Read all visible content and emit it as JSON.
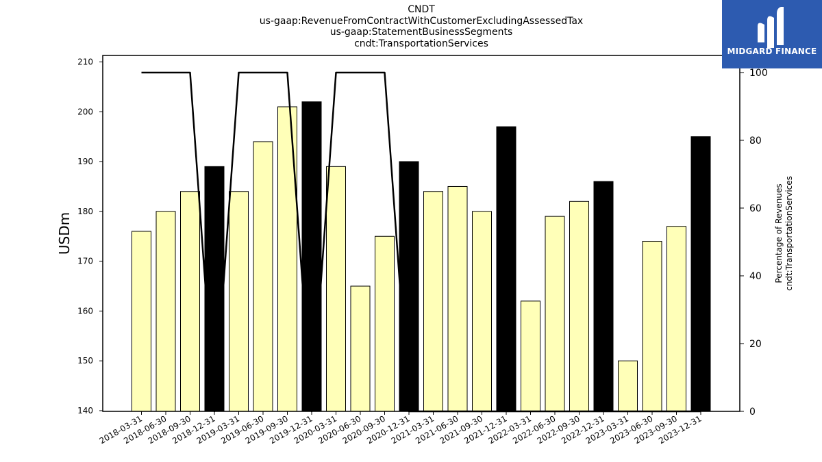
{
  "chart_data": {
    "type": "bar",
    "title_lines": [
      "CNDT",
      "us-gaap:RevenueFromContractWithCustomerExcludingAssessedTax",
      "us-gaap:StatementBusinessSegments",
      "cndt:TransportationServices"
    ],
    "ylabel": "USDm",
    "y2label_lines": [
      "Percentage of Revenues",
      "cndt:TransportationServices"
    ],
    "ylim": [
      140,
      210
    ],
    "y2lim": [
      0,
      100
    ],
    "yticks": [
      140,
      150,
      160,
      170,
      180,
      190,
      200,
      210
    ],
    "y2ticks": [
      0,
      20,
      40,
      60,
      80,
      100
    ],
    "categories": [
      "2018-03-31",
      "2018-06-30",
      "2018-09-30",
      "2018-12-31",
      "2019-03-31",
      "2019-06-30",
      "2019-09-30",
      "2019-12-31",
      "2020-03-31",
      "2020-06-30",
      "2020-09-30",
      "2020-12-31",
      "2021-03-31",
      "2021-06-30",
      "2021-09-30",
      "2021-12-31",
      "2022-03-31",
      "2022-06-30",
      "2022-09-30",
      "2022-12-31",
      "2023-03-31",
      "2023-06-30",
      "2023-09-30",
      "2023-12-31"
    ],
    "series": [
      {
        "type": "bar",
        "values": [
          176,
          180,
          184,
          189,
          184,
          194,
          201,
          202,
          189,
          165,
          175,
          190,
          184,
          185,
          180,
          197,
          162,
          179,
          182,
          186,
          150,
          174,
          177,
          195
        ],
        "colors": [
          "#ffffb8",
          "#ffffb8",
          "#ffffb8",
          "#000000",
          "#ffffb8",
          "#ffffb8",
          "#ffffb8",
          "#000000",
          "#ffffb8",
          "#ffffb8",
          "#ffffb8",
          "#000000",
          "#ffffb8",
          "#ffffb8",
          "#ffffb8",
          "#000000",
          "#ffffb8",
          "#ffffb8",
          "#ffffb8",
          "#000000",
          "#ffffb8",
          "#ffffb8",
          "#ffffb8",
          "#000000"
        ]
      },
      {
        "type": "line",
        "axis": "right",
        "values": [
          100,
          100,
          100,
          0,
          100,
          100,
          100,
          0,
          100,
          100,
          100,
          0,
          0,
          0,
          0,
          0,
          0,
          0,
          0,
          0,
          0,
          0,
          0,
          0
        ]
      }
    ],
    "grid": false,
    "legend": "none"
  },
  "logo": {
    "text": "MIDGARD FINANCE"
  }
}
